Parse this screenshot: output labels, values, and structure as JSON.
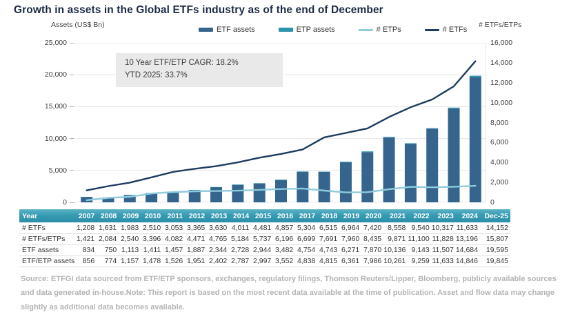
{
  "page": {
    "title": "Growth in assets in the Global ETFs industry as of the end of December"
  },
  "chart": {
    "left_axis_title": "Assets (US$ Bn)",
    "right_axis_title": "# ETFs/ETPs",
    "annotation": {
      "line1": "10 Year ETF/ETP CAGR: 18.2%",
      "line2": "YTD 2025: 33.7%"
    },
    "legend": [
      {
        "label": "ETF assets",
        "shape": "bar",
        "color": "#35658d"
      },
      {
        "label": "ETP assets",
        "shape": "bar",
        "color": "#2e93ad"
      },
      {
        "label": "# ETPs",
        "shape": "line",
        "color": "#8ecbdc"
      },
      {
        "label": "# ETFs",
        "shape": "line",
        "color": "#1d3c5f"
      }
    ],
    "colors": {
      "bar_etf": "#35658d",
      "bar_etp": "#2e93ad",
      "line_etps": "#8ecbdc",
      "line_etfs": "#1d3c5f",
      "gridline": "#e6e6e6",
      "axis_line": "#c8c8c8"
    }
  },
  "chart_data": {
    "type": "bar",
    "title": "Growth in assets in the Global ETFs industry as of the end of December",
    "categories": [
      "2007",
      "2008",
      "2009",
      "2010",
      "2011",
      "2012",
      "2013",
      "2014",
      "2015",
      "2016",
      "2017",
      "2018",
      "2019",
      "2020",
      "2021",
      "2022",
      "2023",
      "2024",
      "Dec-25"
    ],
    "series": [
      {
        "name": "ETF assets",
        "render": "bar",
        "axis": "left",
        "values": [
          834,
          750,
          1113,
          1411,
          1457,
          1887,
          2344,
          2728,
          2944,
          3482,
          4754,
          4743,
          6271,
          7870,
          10136,
          9143,
          11507,
          14684,
          19595
        ]
      },
      {
        "name": "ETP assets",
        "render": "bar-stacked",
        "axis": "left",
        "values": [
          22,
          24,
          44,
          67,
          69,
          64,
          58,
          59,
          53,
          70,
          84,
          72,
          90,
          116,
          125,
          116,
          126,
          162,
          250
        ]
      },
      {
        "name": "# ETPs",
        "render": "line",
        "axis": "right",
        "values": [
          213,
          453,
          557,
          886,
          1029,
          1106,
          1135,
          1173,
          1256,
          1339,
          1395,
          1176,
          996,
          1015,
          1313,
          1560,
          1511,
          1563,
          1655
        ]
      },
      {
        "name": "# ETFs",
        "render": "line",
        "axis": "right",
        "values": [
          1208,
          1631,
          1983,
          2510,
          3053,
          3365,
          3630,
          4011,
          4481,
          4857,
          5304,
          6515,
          6964,
          7420,
          8558,
          9540,
          10317,
          11633,
          14152
        ]
      }
    ],
    "left_axis": {
      "title": "Assets (US$ Bn)",
      "min": 0,
      "max": 25000,
      "ticks_top_to_bottom": [
        "25,000",
        "20,000",
        "15,000",
        "10,000",
        "5,000",
        "0"
      ]
    },
    "right_axis": {
      "title": "# ETFs/ETPs",
      "min": 0,
      "max": 16000,
      "ticks_top_to_bottom": [
        "16,000",
        "14,000",
        "12,000",
        "10,000",
        "8,000",
        "6,000",
        "4,000",
        "2,000",
        "0"
      ]
    },
    "grid": "horizontal gridlines at left-axis ticks",
    "legend_position": "top",
    "annotations": [
      "10 Year ETF/ETP CAGR: 18.2%",
      "YTD 2025: 33.7%"
    ]
  },
  "table": {
    "header": [
      "Year",
      "2007",
      "2008",
      "2009",
      "2010",
      "2011",
      "2012",
      "2013",
      "2014",
      "2015",
      "2016",
      "2017",
      "2018",
      "2019",
      "2020",
      "2021",
      "2022",
      "2023",
      "2024",
      "Dec-25"
    ],
    "rows": [
      {
        "label": "# ETFs",
        "values": [
          "1,208",
          "1,631",
          "1,983",
          "2,510",
          "3,053",
          "3,365",
          "3,630",
          "4,011",
          "4,481",
          "4,857",
          "5,304",
          "6,515",
          "6,964",
          "7,420",
          "8,558",
          "9,540",
          "10,317",
          "11,633",
          "14,152"
        ]
      },
      {
        "label": "# ETFs/ETPs",
        "values": [
          "1,421",
          "2,084",
          "2,540",
          "3,396",
          "4,082",
          "4,471",
          "4,765",
          "5,184",
          "5,737",
          "6,196",
          "6,699",
          "7,691",
          "7,960",
          "8,435",
          "9,871",
          "11,100",
          "11,828",
          "13,196",
          "15,807"
        ]
      },
      {
        "label": "ETF assets",
        "values": [
          "834",
          "750",
          "1,113",
          "1,411",
          "1,457",
          "1,887",
          "2,344",
          "2,728",
          "2,944",
          "3,482",
          "4,754",
          "4,743",
          "6,271",
          "7,870",
          "10,136",
          "9,143",
          "11,507",
          "14,684",
          "19,595"
        ]
      },
      {
        "label": "ETF/ETP assets",
        "values": [
          "856",
          "774",
          "1,157",
          "1,478",
          "1,526",
          "1,951",
          "2,402",
          "2,787",
          "2,997",
          "3,552",
          "4,838",
          "4,815",
          "6,361",
          "7,986",
          "10,261",
          "9,259",
          "11,633",
          "14,846",
          "19,845"
        ]
      }
    ]
  },
  "source_note": "Source: ETFGI data sourced from ETF/ETP sponsors, exchanges, regulatory filings, Thomson Reuters/Lipper, Bloomberg, publicly available sources and data generated in-house.Note: This report is based on the most recent data available at the time of publication. Asset and flow data may change slightly as additional data becomes available."
}
